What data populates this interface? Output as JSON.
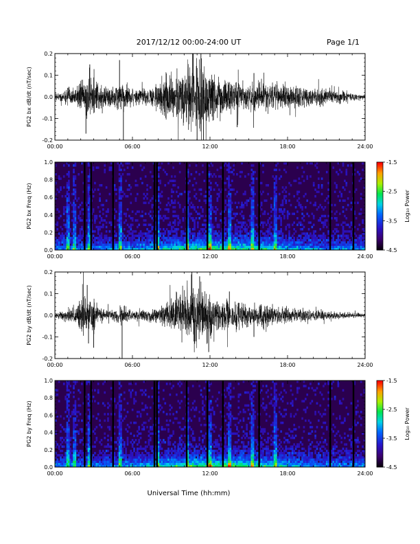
{
  "header": {
    "title": "2017/12/12   00:00-24:00 UT",
    "page": "Page 1/1"
  },
  "chart_data": [
    {
      "type": "line",
      "ylabel": "PG2 bx dB/dt (nT/sec)",
      "x_unit": "hours UT",
      "xlim": [
        0,
        24
      ],
      "ylim": [
        -0.2,
        0.2
      ],
      "xticks": [
        "00:00",
        "06:00",
        "12:00",
        "18:00",
        "24:00"
      ],
      "yticks": [
        "-0.2",
        "-0.1",
        "0.0",
        "0.1",
        "0.2"
      ],
      "envelope": {
        "x": [
          0,
          0.5,
          1,
          1.5,
          2,
          2.5,
          3,
          3.5,
          4,
          4.5,
          5,
          5.5,
          6,
          6.5,
          7,
          7.5,
          8,
          8.5,
          9,
          9.5,
          10,
          10.5,
          11,
          11.5,
          12,
          12.5,
          13,
          13.5,
          14,
          14.5,
          15,
          15.5,
          16,
          16.5,
          17,
          17.5,
          18,
          18.5,
          19,
          19.5,
          20,
          20.5,
          21,
          21.5,
          22,
          22.5,
          23,
          23.5,
          24
        ],
        "amplitude": [
          0.015,
          0.02,
          0.035,
          0.03,
          0.05,
          0.08,
          0.075,
          0.045,
          0.04,
          0.04,
          0.06,
          0.05,
          0.03,
          0.03,
          0.035,
          0.04,
          0.06,
          0.08,
          0.085,
          0.09,
          0.11,
          0.13,
          0.15,
          0.13,
          0.11,
          0.08,
          0.07,
          0.065,
          0.055,
          0.05,
          0.045,
          0.045,
          0.055,
          0.05,
          0.05,
          0.04,
          0.05,
          0.045,
          0.04,
          0.035,
          0.03,
          0.035,
          0.03,
          0.03,
          0.025,
          0.02,
          0.015,
          0.012,
          0.01
        ]
      },
      "spikes": [
        {
          "x": 2.4,
          "y": -0.17
        },
        {
          "x": 2.7,
          "y": 0.15
        },
        {
          "x": 5.0,
          "y": 0.17
        },
        {
          "x": 5.3,
          "y": -0.2
        },
        {
          "x": 10.7,
          "y": 0.2
        },
        {
          "x": 11.0,
          "y": -0.2
        },
        {
          "x": 11.3,
          "y": 0.2
        },
        {
          "x": 11.5,
          "y": -0.2
        },
        {
          "x": 14.1,
          "y": -0.14
        },
        {
          "x": 15.4,
          "y": 0.11
        }
      ]
    },
    {
      "type": "heatmap",
      "ylabel": "PG2 bx Freq (Hz)",
      "x_unit": "hours UT",
      "xlim": [
        0,
        24
      ],
      "ylim": [
        0,
        1.0
      ],
      "xticks": [
        "00:00",
        "06:00",
        "12:00",
        "18:00",
        "24:00"
      ],
      "yticks": [
        "0.0",
        "0.2",
        "0.4",
        "0.6",
        "0.8",
        "1.0"
      ],
      "colorbar": {
        "label": "Log₁₀ Power",
        "range": [
          -4.5,
          -1.5
        ],
        "ticks": [
          "-1.5",
          "-2.5",
          "-3.5",
          "-4.5"
        ]
      },
      "dark_columns": [
        2.3,
        2.8,
        4.5,
        7.7,
        7.9,
        10.2,
        11.8,
        13.0,
        15.8,
        21.3,
        23.1
      ],
      "bright_columns": [
        1.0,
        1.5,
        2.6,
        5.0,
        7.95,
        10.3,
        12.0,
        13.5,
        15.3,
        17.0
      ]
    },
    {
      "type": "line",
      "ylabel": "PG2 by dB/dt (nT/sec)",
      "x_unit": "hours UT",
      "xlim": [
        0,
        24
      ],
      "ylim": [
        -0.2,
        0.2
      ],
      "xticks": [
        "00:00",
        "06:00",
        "12:00",
        "18:00",
        "24:00"
      ],
      "yticks": [
        "-0.2",
        "-0.1",
        "0.0",
        "0.1",
        "0.2"
      ],
      "envelope": {
        "x": [
          0,
          0.5,
          1,
          1.5,
          2,
          2.5,
          3,
          3.5,
          4,
          4.5,
          5,
          5.5,
          6,
          6.5,
          7,
          7.5,
          8,
          8.5,
          9,
          9.5,
          10,
          10.5,
          11,
          11.5,
          12,
          12.5,
          13,
          13.5,
          14,
          14.5,
          15,
          15.5,
          16,
          16.5,
          17,
          17.5,
          18,
          18.5,
          19,
          19.5,
          20,
          20.5,
          21,
          21.5,
          22,
          22.5,
          23,
          23.5,
          24
        ],
        "amplitude": [
          0.012,
          0.015,
          0.025,
          0.03,
          0.06,
          0.08,
          0.06,
          0.03,
          0.025,
          0.02,
          0.035,
          0.03,
          0.02,
          0.02,
          0.025,
          0.025,
          0.03,
          0.05,
          0.06,
          0.07,
          0.09,
          0.11,
          0.12,
          0.1,
          0.08,
          0.065,
          0.06,
          0.055,
          0.05,
          0.045,
          0.04,
          0.04,
          0.045,
          0.04,
          0.035,
          0.03,
          0.03,
          0.025,
          0.025,
          0.02,
          0.02,
          0.02,
          0.018,
          0.015,
          0.015,
          0.012,
          0.01,
          0.01,
          0.008
        ]
      },
      "spikes": [
        {
          "x": 2.5,
          "y": 0.14
        },
        {
          "x": 2.6,
          "y": -0.13
        },
        {
          "x": 3.0,
          "y": -0.15
        },
        {
          "x": 5.2,
          "y": -0.2
        },
        {
          "x": 10.6,
          "y": 0.2
        },
        {
          "x": 10.9,
          "y": -0.12
        },
        {
          "x": 11.2,
          "y": 0.18
        },
        {
          "x": 11.9,
          "y": -0.17
        },
        {
          "x": 15.4,
          "y": -0.1
        },
        {
          "x": 13.5,
          "y": 0.11
        }
      ]
    },
    {
      "type": "heatmap",
      "ylabel": "PG2 by Freq (Hz)",
      "x_unit": "hours UT",
      "xlim": [
        0,
        24
      ],
      "ylim": [
        0,
        1.0
      ],
      "xticks": [
        "00:00",
        "06:00",
        "12:00",
        "18:00",
        "24:00"
      ],
      "yticks": [
        "0.0",
        "0.2",
        "0.4",
        "0.6",
        "0.8",
        "1.0"
      ],
      "colorbar": {
        "label": "Log₁₀ Power",
        "range": [
          -4.5,
          -1.5
        ],
        "ticks": [
          "-1.5",
          "-2.5",
          "-3.5",
          "-4.5"
        ]
      },
      "dark_columns": [
        2.3,
        2.8,
        4.5,
        7.7,
        7.9,
        10.2,
        11.8,
        13.0,
        15.8,
        21.3,
        23.1
      ],
      "bright_columns": [
        1.0,
        1.5,
        2.6,
        5.0,
        7.95,
        10.3,
        12.0,
        13.5,
        15.3,
        17.0
      ]
    }
  ],
  "footer": {
    "xlabel": "Universal Time (hh:mm)"
  }
}
